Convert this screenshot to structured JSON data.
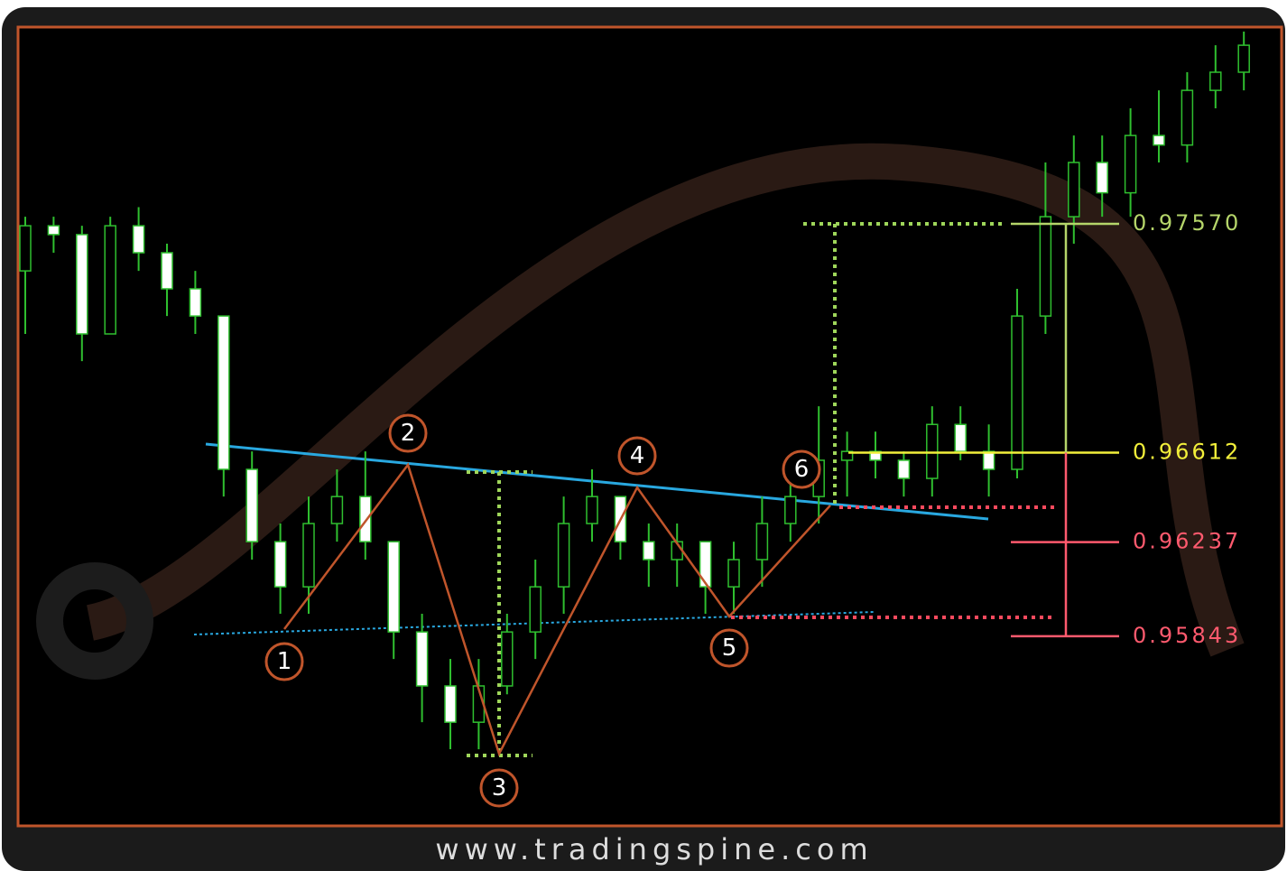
{
  "chart_data": {
    "type": "candlestick",
    "ylim": [
      0.95049,
      0.98394
    ],
    "series": [
      {
        "open": [
          0.97373,
          0.97562,
          0.97525,
          0.97109,
          0.97562,
          0.97449,
          0.97298,
          0.97184,
          0.96542,
          0.96239,
          0.9605,
          0.96315,
          0.96428,
          0.96239,
          0.95861,
          0.95635,
          0.95483,
          0.95635,
          0.95861,
          0.9605,
          0.96315,
          0.96428,
          0.96239,
          0.96164,
          0.96239,
          0.9605,
          0.96164,
          0.96315,
          0.96428,
          0.9658,
          0.96617,
          0.9658,
          0.96504,
          0.9673,
          0.96617,
          0.96542,
          0.97184,
          0.976,
          0.97827,
          0.977,
          0.9794,
          0.979,
          0.98129,
          0.98205
        ],
        "high": [
          0.976,
          0.976,
          0.97562,
          0.976,
          0.9764,
          0.97487,
          0.97373,
          0.97184,
          0.96617,
          0.96315,
          0.96428,
          0.96542,
          0.96617,
          0.96239,
          0.95937,
          0.95748,
          0.95748,
          0.95937,
          0.96164,
          0.96428,
          0.96542,
          0.96428,
          0.96315,
          0.96315,
          0.96239,
          0.96239,
          0.96428,
          0.96542,
          0.96806,
          0.967,
          0.967,
          0.96617,
          0.96806,
          0.96806,
          0.9673,
          0.97298,
          0.97827,
          0.9794,
          0.9794,
          0.98054,
          0.98129,
          0.98205,
          0.98318,
          0.98375
        ],
        "low": [
          0.97109,
          0.97449,
          0.96995,
          0.97109,
          0.97373,
          0.97184,
          0.97109,
          0.96428,
          0.96164,
          0.95937,
          0.95937,
          0.96239,
          0.96164,
          0.95748,
          0.95483,
          0.9537,
          0.9537,
          0.956,
          0.95748,
          0.95937,
          0.96239,
          0.96164,
          0.9605,
          0.9605,
          0.95937,
          0.95937,
          0.9605,
          0.96239,
          0.96315,
          0.96428,
          0.96504,
          0.96428,
          0.96428,
          0.9658,
          0.96428,
          0.96504,
          0.97109,
          0.97487,
          0.976,
          0.976,
          0.97827,
          0.97827,
          0.98054,
          0.98129
        ],
        "close": [
          0.97562,
          0.97525,
          0.97109,
          0.97562,
          0.97449,
          0.97298,
          0.97184,
          0.96542,
          0.96239,
          0.9605,
          0.96315,
          0.96428,
          0.96239,
          0.95861,
          0.95635,
          0.95483,
          0.95635,
          0.95861,
          0.9605,
          0.96315,
          0.96428,
          0.96239,
          0.96164,
          0.96239,
          0.9605,
          0.96164,
          0.96315,
          0.96428,
          0.9658,
          0.96617,
          0.9658,
          0.96504,
          0.9673,
          0.96617,
          0.96542,
          0.97184,
          0.976,
          0.97827,
          0.977,
          0.9794,
          0.979,
          0.98129,
          0.98205,
          0.98318
        ]
      }
    ],
    "levels": [
      {
        "value": 0.9757,
        "label": "0.97570",
        "color": "#b5d56a"
      },
      {
        "value": 0.96612,
        "label": "0.96612",
        "color": "#f2ef3a"
      },
      {
        "value": 0.96237,
        "label": "0.96237",
        "color": "#ff5a6e"
      },
      {
        "value": 0.95843,
        "label": "0.95843",
        "color": "#ff5a6e"
      }
    ],
    "points": [
      {
        "label": "1",
        "value": 0.95873
      },
      {
        "label": "2",
        "value": 0.96561
      },
      {
        "label": "3",
        "value": 0.95351
      },
      {
        "label": "4",
        "value": 0.96466
      },
      {
        "label": "5",
        "value": 0.95926
      },
      {
        "label": "6",
        "value": 0.96391
      }
    ],
    "footer": "www.tradingspine.com"
  }
}
